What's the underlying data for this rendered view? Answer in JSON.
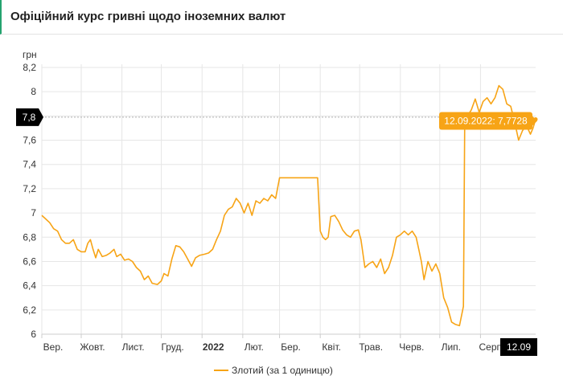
{
  "header": {
    "title": "Офіційний курс гривні щодо іноземних валют"
  },
  "chart_data": {
    "type": "line",
    "title": "Офіційний курс гривні щодо іноземних валют",
    "ylabel": "грн",
    "xlabel": "",
    "ylim": [
      6,
      8.2
    ],
    "xlim": [
      "2021-09-01",
      "2022-09-12"
    ],
    "y_ticks": [
      "6",
      "6,2",
      "6,4",
      "6,6",
      "6,8",
      "7",
      "7,2",
      "7,4",
      "7,6",
      "7,8",
      "8",
      "8,2"
    ],
    "y_tick_values": [
      6,
      6.2,
      6.4,
      6.6,
      6.8,
      7,
      7.2,
      7.4,
      7.6,
      7.8,
      8,
      8.2
    ],
    "x_ticks": [
      {
        "label": "Вер.",
        "date": "2021-09-01",
        "bold": false
      },
      {
        "label": "Жовт.",
        "date": "2021-10-01",
        "bold": false
      },
      {
        "label": "Лист.",
        "date": "2021-11-01",
        "bold": false
      },
      {
        "label": "Груд.",
        "date": "2021-12-01",
        "bold": false
      },
      {
        "label": "2022",
        "date": "2022-01-01",
        "bold": true
      },
      {
        "label": "Лют.",
        "date": "2022-02-01",
        "bold": false
      },
      {
        "label": "Бер.",
        "date": "2022-03-01",
        "bold": false
      },
      {
        "label": "Квіт.",
        "date": "2022-04-01",
        "bold": false
      },
      {
        "label": "Трав.",
        "date": "2022-05-01",
        "bold": false
      },
      {
        "label": "Черв.",
        "date": "2022-06-01",
        "bold": false
      },
      {
        "label": "Лип.",
        "date": "2022-07-01",
        "bold": false
      },
      {
        "label": "Серп.",
        "date": "2022-08-01",
        "bold": false
      }
    ],
    "grid": true,
    "legend_position": "bottom",
    "colors": {
      "series": "#f7a416",
      "badge": "#000000",
      "tooltip_bg": "#f7a416",
      "axis_text": "#333333",
      "header_accent": "#25a36f"
    },
    "crosshair": {
      "y_label": "7,8",
      "y_value": 7.79,
      "x_label": "12.09",
      "x_date": "2022-09-12"
    },
    "tooltip": {
      "text": "12.09.2022: 7,7728",
      "date": "2022-09-12",
      "value": 7.7728
    },
    "series": [
      {
        "name": "Злотий (за 1 одиницю)",
        "points": [
          [
            "2021-09-01",
            6.98
          ],
          [
            "2021-09-04",
            6.95
          ],
          [
            "2021-09-07",
            6.92
          ],
          [
            "2021-09-10",
            6.87
          ],
          [
            "2021-09-13",
            6.85
          ],
          [
            "2021-09-16",
            6.78
          ],
          [
            "2021-09-19",
            6.75
          ],
          [
            "2021-09-22",
            6.75
          ],
          [
            "2021-09-25",
            6.78
          ],
          [
            "2021-09-28",
            6.7
          ],
          [
            "2021-10-01",
            6.68
          ],
          [
            "2021-10-04",
            6.68
          ],
          [
            "2021-10-06",
            6.75
          ],
          [
            "2021-10-08",
            6.78
          ],
          [
            "2021-10-10",
            6.7
          ],
          [
            "2021-10-12",
            6.63
          ],
          [
            "2021-10-14",
            6.7
          ],
          [
            "2021-10-17",
            6.64
          ],
          [
            "2021-10-20",
            6.65
          ],
          [
            "2021-10-23",
            6.67
          ],
          [
            "2021-10-26",
            6.7
          ],
          [
            "2021-10-28",
            6.64
          ],
          [
            "2021-10-31",
            6.66
          ],
          [
            "2021-11-03",
            6.61
          ],
          [
            "2021-11-06",
            6.62
          ],
          [
            "2021-11-09",
            6.6
          ],
          [
            "2021-11-12",
            6.55
          ],
          [
            "2021-11-15",
            6.52
          ],
          [
            "2021-11-18",
            6.45
          ],
          [
            "2021-11-21",
            6.48
          ],
          [
            "2021-11-24",
            6.42
          ],
          [
            "2021-11-28",
            6.41
          ],
          [
            "2021-12-01",
            6.44
          ],
          [
            "2021-12-03",
            6.5
          ],
          [
            "2021-12-06",
            6.48
          ],
          [
            "2021-12-09",
            6.62
          ],
          [
            "2021-12-12",
            6.73
          ],
          [
            "2021-12-15",
            6.72
          ],
          [
            "2021-12-18",
            6.68
          ],
          [
            "2021-12-21",
            6.62
          ],
          [
            "2021-12-24",
            6.56
          ],
          [
            "2021-12-27",
            6.63
          ],
          [
            "2021-12-30",
            6.65
          ],
          [
            "2022-01-03",
            6.66
          ],
          [
            "2022-01-06",
            6.67
          ],
          [
            "2022-01-09",
            6.7
          ],
          [
            "2022-01-12",
            6.78
          ],
          [
            "2022-01-15",
            6.85
          ],
          [
            "2022-01-18",
            6.98
          ],
          [
            "2022-01-21",
            7.03
          ],
          [
            "2022-01-24",
            7.05
          ],
          [
            "2022-01-27",
            7.12
          ],
          [
            "2022-01-30",
            7.08
          ],
          [
            "2022-02-02",
            7.0
          ],
          [
            "2022-02-05",
            7.08
          ],
          [
            "2022-02-08",
            6.98
          ],
          [
            "2022-02-11",
            7.1
          ],
          [
            "2022-02-14",
            7.08
          ],
          [
            "2022-02-17",
            7.12
          ],
          [
            "2022-02-20",
            7.1
          ],
          [
            "2022-02-23",
            7.15
          ],
          [
            "2022-02-26",
            7.12
          ],
          [
            "2022-03-01",
            7.29
          ],
          [
            "2022-03-05",
            7.29
          ],
          [
            "2022-03-10",
            7.29
          ],
          [
            "2022-03-15",
            7.29
          ],
          [
            "2022-03-20",
            7.29
          ],
          [
            "2022-03-25",
            7.29
          ],
          [
            "2022-03-30",
            7.29
          ],
          [
            "2022-04-01",
            6.85
          ],
          [
            "2022-04-03",
            6.8
          ],
          [
            "2022-04-05",
            6.78
          ],
          [
            "2022-04-07",
            6.8
          ],
          [
            "2022-04-09",
            6.97
          ],
          [
            "2022-04-12",
            6.98
          ],
          [
            "2022-04-15",
            6.93
          ],
          [
            "2022-04-18",
            6.86
          ],
          [
            "2022-04-21",
            6.82
          ],
          [
            "2022-04-24",
            6.8
          ],
          [
            "2022-04-27",
            6.85
          ],
          [
            "2022-04-30",
            6.86
          ],
          [
            "2022-05-02",
            6.78
          ],
          [
            "2022-05-05",
            6.55
          ],
          [
            "2022-05-08",
            6.58
          ],
          [
            "2022-05-11",
            6.6
          ],
          [
            "2022-05-14",
            6.55
          ],
          [
            "2022-05-17",
            6.62
          ],
          [
            "2022-05-20",
            6.5
          ],
          [
            "2022-05-23",
            6.55
          ],
          [
            "2022-05-26",
            6.65
          ],
          [
            "2022-05-29",
            6.8
          ],
          [
            "2022-06-01",
            6.82
          ],
          [
            "2022-06-04",
            6.85
          ],
          [
            "2022-06-07",
            6.82
          ],
          [
            "2022-06-10",
            6.85
          ],
          [
            "2022-06-13",
            6.8
          ],
          [
            "2022-06-15",
            6.7
          ],
          [
            "2022-06-17",
            6.6
          ],
          [
            "2022-06-19",
            6.45
          ],
          [
            "2022-06-22",
            6.6
          ],
          [
            "2022-06-25",
            6.52
          ],
          [
            "2022-06-28",
            6.58
          ],
          [
            "2022-07-01",
            6.5
          ],
          [
            "2022-07-04",
            6.3
          ],
          [
            "2022-07-07",
            6.22
          ],
          [
            "2022-07-10",
            6.1
          ],
          [
            "2022-07-13",
            6.08
          ],
          [
            "2022-07-16",
            6.07
          ],
          [
            "2022-07-19",
            6.23
          ],
          [
            "2022-07-20",
            7.75
          ],
          [
            "2022-07-22",
            7.8
          ],
          [
            "2022-07-25",
            7.85
          ],
          [
            "2022-07-28",
            7.94
          ],
          [
            "2022-07-31",
            7.83
          ],
          [
            "2022-08-03",
            7.92
          ],
          [
            "2022-08-06",
            7.95
          ],
          [
            "2022-08-09",
            7.9
          ],
          [
            "2022-08-12",
            7.95
          ],
          [
            "2022-08-15",
            8.05
          ],
          [
            "2022-08-18",
            8.02
          ],
          [
            "2022-08-21",
            7.9
          ],
          [
            "2022-08-24",
            7.88
          ],
          [
            "2022-08-27",
            7.75
          ],
          [
            "2022-08-30",
            7.6
          ],
          [
            "2022-09-02",
            7.68
          ],
          [
            "2022-09-05",
            7.72
          ],
          [
            "2022-09-08",
            7.65
          ],
          [
            "2022-09-10",
            7.7
          ],
          [
            "2022-09-12",
            7.7728
          ]
        ]
      }
    ]
  }
}
